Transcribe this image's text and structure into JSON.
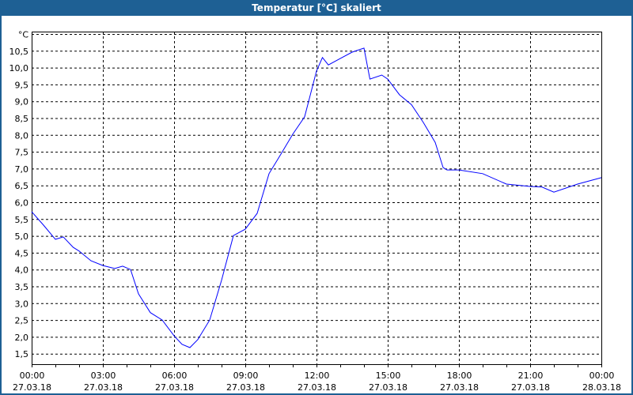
{
  "window": {
    "title": "Temperatur [°C] skaliert"
  },
  "chart_data": {
    "type": "line",
    "title": "Temperatur [°C] skaliert",
    "ylabel": "°C",
    "xlabel": "",
    "ylim": [
      1.2,
      11.0
    ],
    "xlim_hours": [
      0,
      24
    ],
    "grid": true,
    "line_color": "#0000ff",
    "yticks": [
      "1,5",
      "2,0",
      "2,5",
      "3,0",
      "3,5",
      "4,0",
      "4,5",
      "5,0",
      "5,5",
      "6,0",
      "6,5",
      "7,0",
      "7,5",
      "8,0",
      "8,5",
      "9,0",
      "9,5",
      "10,0",
      "10,5"
    ],
    "ytick_values": [
      1.5,
      2.0,
      2.5,
      3.0,
      3.5,
      4.0,
      4.5,
      5.0,
      5.5,
      6.0,
      6.5,
      7.0,
      7.5,
      8.0,
      8.5,
      9.0,
      9.5,
      10.0,
      10.5
    ],
    "xticks": [
      {
        "time": "00:00",
        "date": "27.03.18"
      },
      {
        "time": "03:00",
        "date": "27.03.18"
      },
      {
        "time": "06:00",
        "date": "27.03.18"
      },
      {
        "time": "09:00",
        "date": "27.03.18"
      },
      {
        "time": "12:00",
        "date": "27.03.18"
      },
      {
        "time": "15:00",
        "date": "27.03.18"
      },
      {
        "time": "18:00",
        "date": "27.03.18"
      },
      {
        "time": "21:00",
        "date": "27.03.18"
      },
      {
        "time": "00:00",
        "date": "28.03.18"
      }
    ],
    "series": [
      {
        "x": [
          "00:00",
          "00:30",
          "01:00",
          "01:20",
          "01:45",
          "02:00",
          "02:30",
          "03:00",
          "03:30",
          "03:50",
          "04:10",
          "04:30",
          "05:00",
          "05:30",
          "06:00",
          "06:20",
          "06:40",
          "07:00",
          "07:30",
          "08:00",
          "08:30",
          "09:00",
          "09:30",
          "10:00",
          "10:30",
          "11:00",
          "11:30",
          "12:00",
          "12:15",
          "12:30",
          "13:00",
          "13:30",
          "14:00",
          "14:15",
          "14:45",
          "15:00",
          "15:30",
          "16:00",
          "16:30",
          "17:00",
          "17:20",
          "17:30",
          "18:00",
          "19:00",
          "20:00",
          "21:00",
          "21:30",
          "22:00",
          "23:00",
          "24:00"
        ],
        "values": [
          5.72,
          5.32,
          4.9,
          4.97,
          4.66,
          4.55,
          4.26,
          4.12,
          4.03,
          4.1,
          4.0,
          3.28,
          2.72,
          2.5,
          2.03,
          1.78,
          1.68,
          1.92,
          2.5,
          3.68,
          5.01,
          5.2,
          5.67,
          6.85,
          7.43,
          8.02,
          8.54,
          9.9,
          10.3,
          10.08,
          10.27,
          10.46,
          10.58,
          9.66,
          9.78,
          9.66,
          9.19,
          8.9,
          8.37,
          7.78,
          7.03,
          6.96,
          6.96,
          6.85,
          6.54,
          6.47,
          6.45,
          6.3,
          6.54,
          6.73
        ]
      }
    ]
  }
}
